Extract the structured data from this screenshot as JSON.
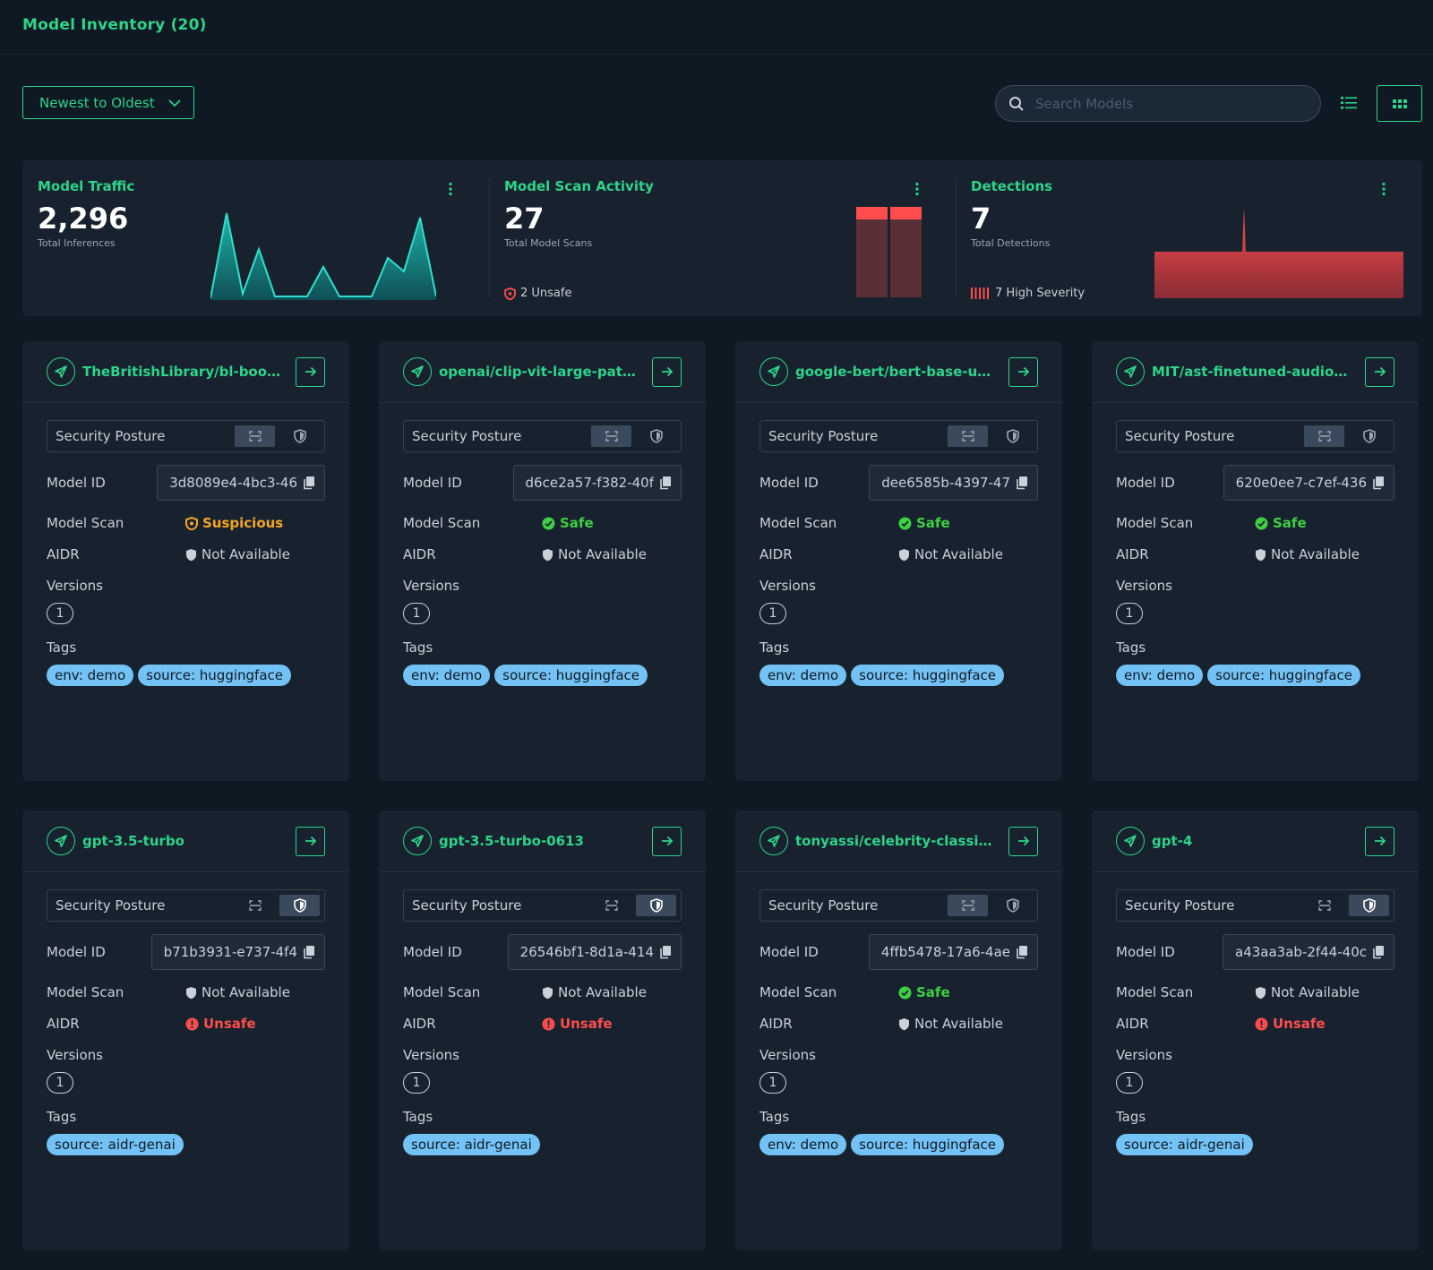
{
  "header": {
    "title": "Model Inventory (20)"
  },
  "toolbar": {
    "sort_label": "Newest to Oldest",
    "search_placeholder": "Search Models",
    "search_value": ""
  },
  "stats": {
    "traffic": {
      "title": "Model Traffic",
      "value": "2,296",
      "subtitle": "Total Inferences",
      "sparkline": [
        0,
        0.95,
        0.05,
        0.55,
        0.02,
        0.02,
        0.02,
        0.35,
        0.02,
        0.02,
        0.02,
        0.45,
        0.3,
        0.9,
        0.02
      ]
    },
    "scans": {
      "title": "Model Scan Activity",
      "value": "27",
      "subtitle": "Total Model Scans",
      "unsafe_label": "2 Unsafe"
    },
    "detections": {
      "title": "Detections",
      "value": "7",
      "subtitle": "Total Detections",
      "severity_label": "7 High Severity"
    }
  },
  "colors": {
    "accent": "#2fd38a",
    "safe": "#3fcf43",
    "unsafe": "#ff4d4d",
    "suspicious": "#f5a623",
    "tag": "#73c2f5"
  },
  "labels": {
    "security_posture": "Security Posture",
    "model_id": "Model ID",
    "model_scan": "Model Scan",
    "aidr": "AIDR",
    "versions": "Versions",
    "tags": "Tags"
  },
  "cards": [
    {
      "name": "TheBritishLibrary/bl-book...",
      "posture_view": "scan",
      "model_id": "3d8089e4-4bc3-46",
      "scan": {
        "kind": "suspicious",
        "label": "Suspicious"
      },
      "aidr": {
        "kind": "na",
        "label": "Not Available"
      },
      "versions": "1",
      "tags": [
        "env: demo",
        "source: huggingface"
      ]
    },
    {
      "name": "openai/clip-vit-large-patc...",
      "posture_view": "scan",
      "model_id": "d6ce2a57-f382-40f",
      "scan": {
        "kind": "safe",
        "label": "Safe"
      },
      "aidr": {
        "kind": "na",
        "label": "Not Available"
      },
      "versions": "1",
      "tags": [
        "env: demo",
        "source: huggingface"
      ]
    },
    {
      "name": "google-bert/bert-base-un...",
      "posture_view": "scan",
      "model_id": "dee6585b-4397-47",
      "scan": {
        "kind": "safe",
        "label": "Safe"
      },
      "aidr": {
        "kind": "na",
        "label": "Not Available"
      },
      "versions": "1",
      "tags": [
        "env: demo",
        "source: huggingface"
      ]
    },
    {
      "name": "MIT/ast-finetuned-audios...",
      "posture_view": "scan",
      "model_id": "620e0ee7-c7ef-436",
      "scan": {
        "kind": "safe",
        "label": "Safe"
      },
      "aidr": {
        "kind": "na",
        "label": "Not Available"
      },
      "versions": "1",
      "tags": [
        "env: demo",
        "source: huggingface"
      ]
    },
    {
      "name": "gpt-3.5-turbo",
      "posture_view": "shield",
      "model_id": "b71b3931-e737-4f4",
      "scan": {
        "kind": "na",
        "label": "Not Available"
      },
      "aidr": {
        "kind": "unsafe",
        "label": "Unsafe"
      },
      "versions": "1",
      "tags": [
        "source: aidr-genai"
      ]
    },
    {
      "name": "gpt-3.5-turbo-0613",
      "posture_view": "shield",
      "model_id": "26546bf1-8d1a-414",
      "scan": {
        "kind": "na",
        "label": "Not Available"
      },
      "aidr": {
        "kind": "unsafe",
        "label": "Unsafe"
      },
      "versions": "1",
      "tags": [
        "source: aidr-genai"
      ]
    },
    {
      "name": "tonyassi/celebrity-classifi...",
      "posture_view": "scan",
      "model_id": "4ffb5478-17a6-4ae",
      "scan": {
        "kind": "safe",
        "label": "Safe"
      },
      "aidr": {
        "kind": "na",
        "label": "Not Available"
      },
      "versions": "1",
      "tags": [
        "env: demo",
        "source: huggingface"
      ]
    },
    {
      "name": "gpt-4",
      "posture_view": "shield",
      "model_id": "a43aa3ab-2f44-40c",
      "scan": {
        "kind": "na",
        "label": "Not Available"
      },
      "aidr": {
        "kind": "unsafe",
        "label": "Unsafe"
      },
      "versions": "1",
      "tags": [
        "source: aidr-genai"
      ]
    }
  ]
}
